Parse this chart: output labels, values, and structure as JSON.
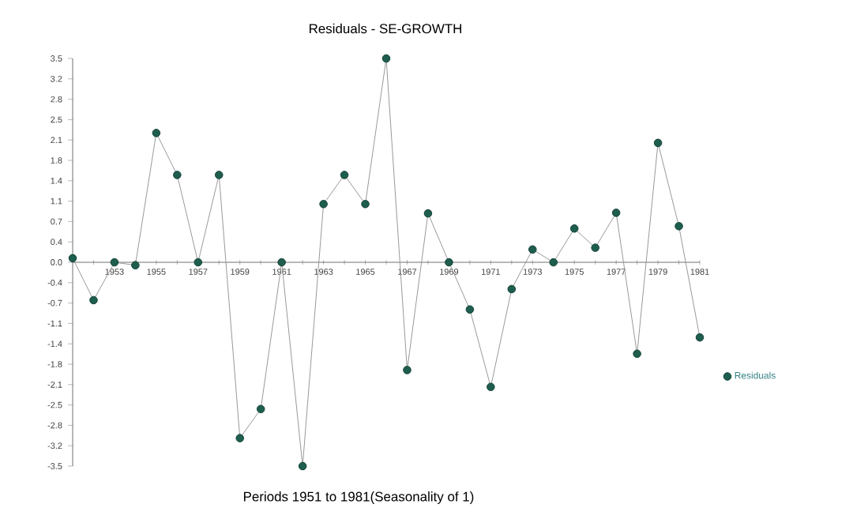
{
  "chart_data": {
    "type": "line",
    "title": "Residuals - SE-GROWTH",
    "xlabel": "Periods 1951 to 1981(Seasonality of 1)",
    "x": [
      1951,
      1952,
      1953,
      1954,
      1955,
      1956,
      1957,
      1958,
      1959,
      1960,
      1961,
      1962,
      1963,
      1964,
      1965,
      1966,
      1967,
      1968,
      1969,
      1970,
      1971,
      1972,
      1973,
      1974,
      1975,
      1976,
      1977,
      1978,
      1979,
      1980,
      1981
    ],
    "series": [
      {
        "name": "Residuals",
        "color": "#1e5e4e",
        "values": [
          0.07,
          -0.65,
          0.0,
          -0.05,
          2.22,
          1.5,
          0.0,
          1.5,
          -3.02,
          -2.52,
          0.0,
          -3.5,
          1.0,
          1.5,
          1.0,
          3.5,
          -1.85,
          0.84,
          0.0,
          -0.81,
          -2.14,
          -0.46,
          0.22,
          0.0,
          0.58,
          0.25,
          0.85,
          -1.57,
          2.05,
          0.62,
          -1.29
        ]
      }
    ],
    "xlim": [
      1951,
      1981
    ],
    "xticks": [
      {
        "value": 1951,
        "label": null
      },
      {
        "value": 1952,
        "label": null
      },
      1953,
      {
        "value": 1954,
        "label": null
      },
      1955,
      {
        "value": 1956,
        "label": null
      },
      1957,
      {
        "value": 1958,
        "label": null
      },
      1959,
      {
        "value": 1960,
        "label": null
      },
      1961,
      {
        "value": 1962,
        "label": null
      },
      1963,
      {
        "value": 1964,
        "label": null
      },
      1965,
      {
        "value": 1966,
        "label": null
      },
      1967,
      {
        "value": 1968,
        "label": null
      },
      1969,
      {
        "value": 1970,
        "label": null
      },
      1971,
      {
        "value": 1972,
        "label": null
      },
      1973,
      {
        "value": 1974,
        "label": null
      },
      1975,
      {
        "value": 1976,
        "label": null
      },
      1977,
      {
        "value": 1978,
        "label": null
      },
      1979,
      {
        "value": 1980,
        "label": null
      },
      1981
    ],
    "ylim": [
      -3.5,
      3.5
    ],
    "yticks": [
      3.5,
      {
        "value": 3.15,
        "label": "3.2"
      },
      2.8,
      {
        "value": 2.45,
        "label": "2.5"
      },
      2.1,
      {
        "value": 1.75,
        "label": "1.8"
      },
      1.4,
      {
        "value": 1.05,
        "label": "1.1"
      },
      0.7,
      {
        "value": 0.35,
        "label": "0.4"
      },
      {
        "value": 0,
        "label": "0.0"
      },
      {
        "value": -0.35,
        "label": "-0.4"
      },
      -0.7,
      {
        "value": -1.05,
        "label": "-1.1"
      },
      -1.4,
      {
        "value": -1.75,
        "label": "-1.8"
      },
      -2.1,
      {
        "value": -2.45,
        "label": "-2.5"
      },
      -2.8,
      {
        "value": -3.15,
        "label": "-3.2"
      },
      -3.5
    ],
    "legend": "right",
    "marker": "circle",
    "line_style": "solid"
  }
}
